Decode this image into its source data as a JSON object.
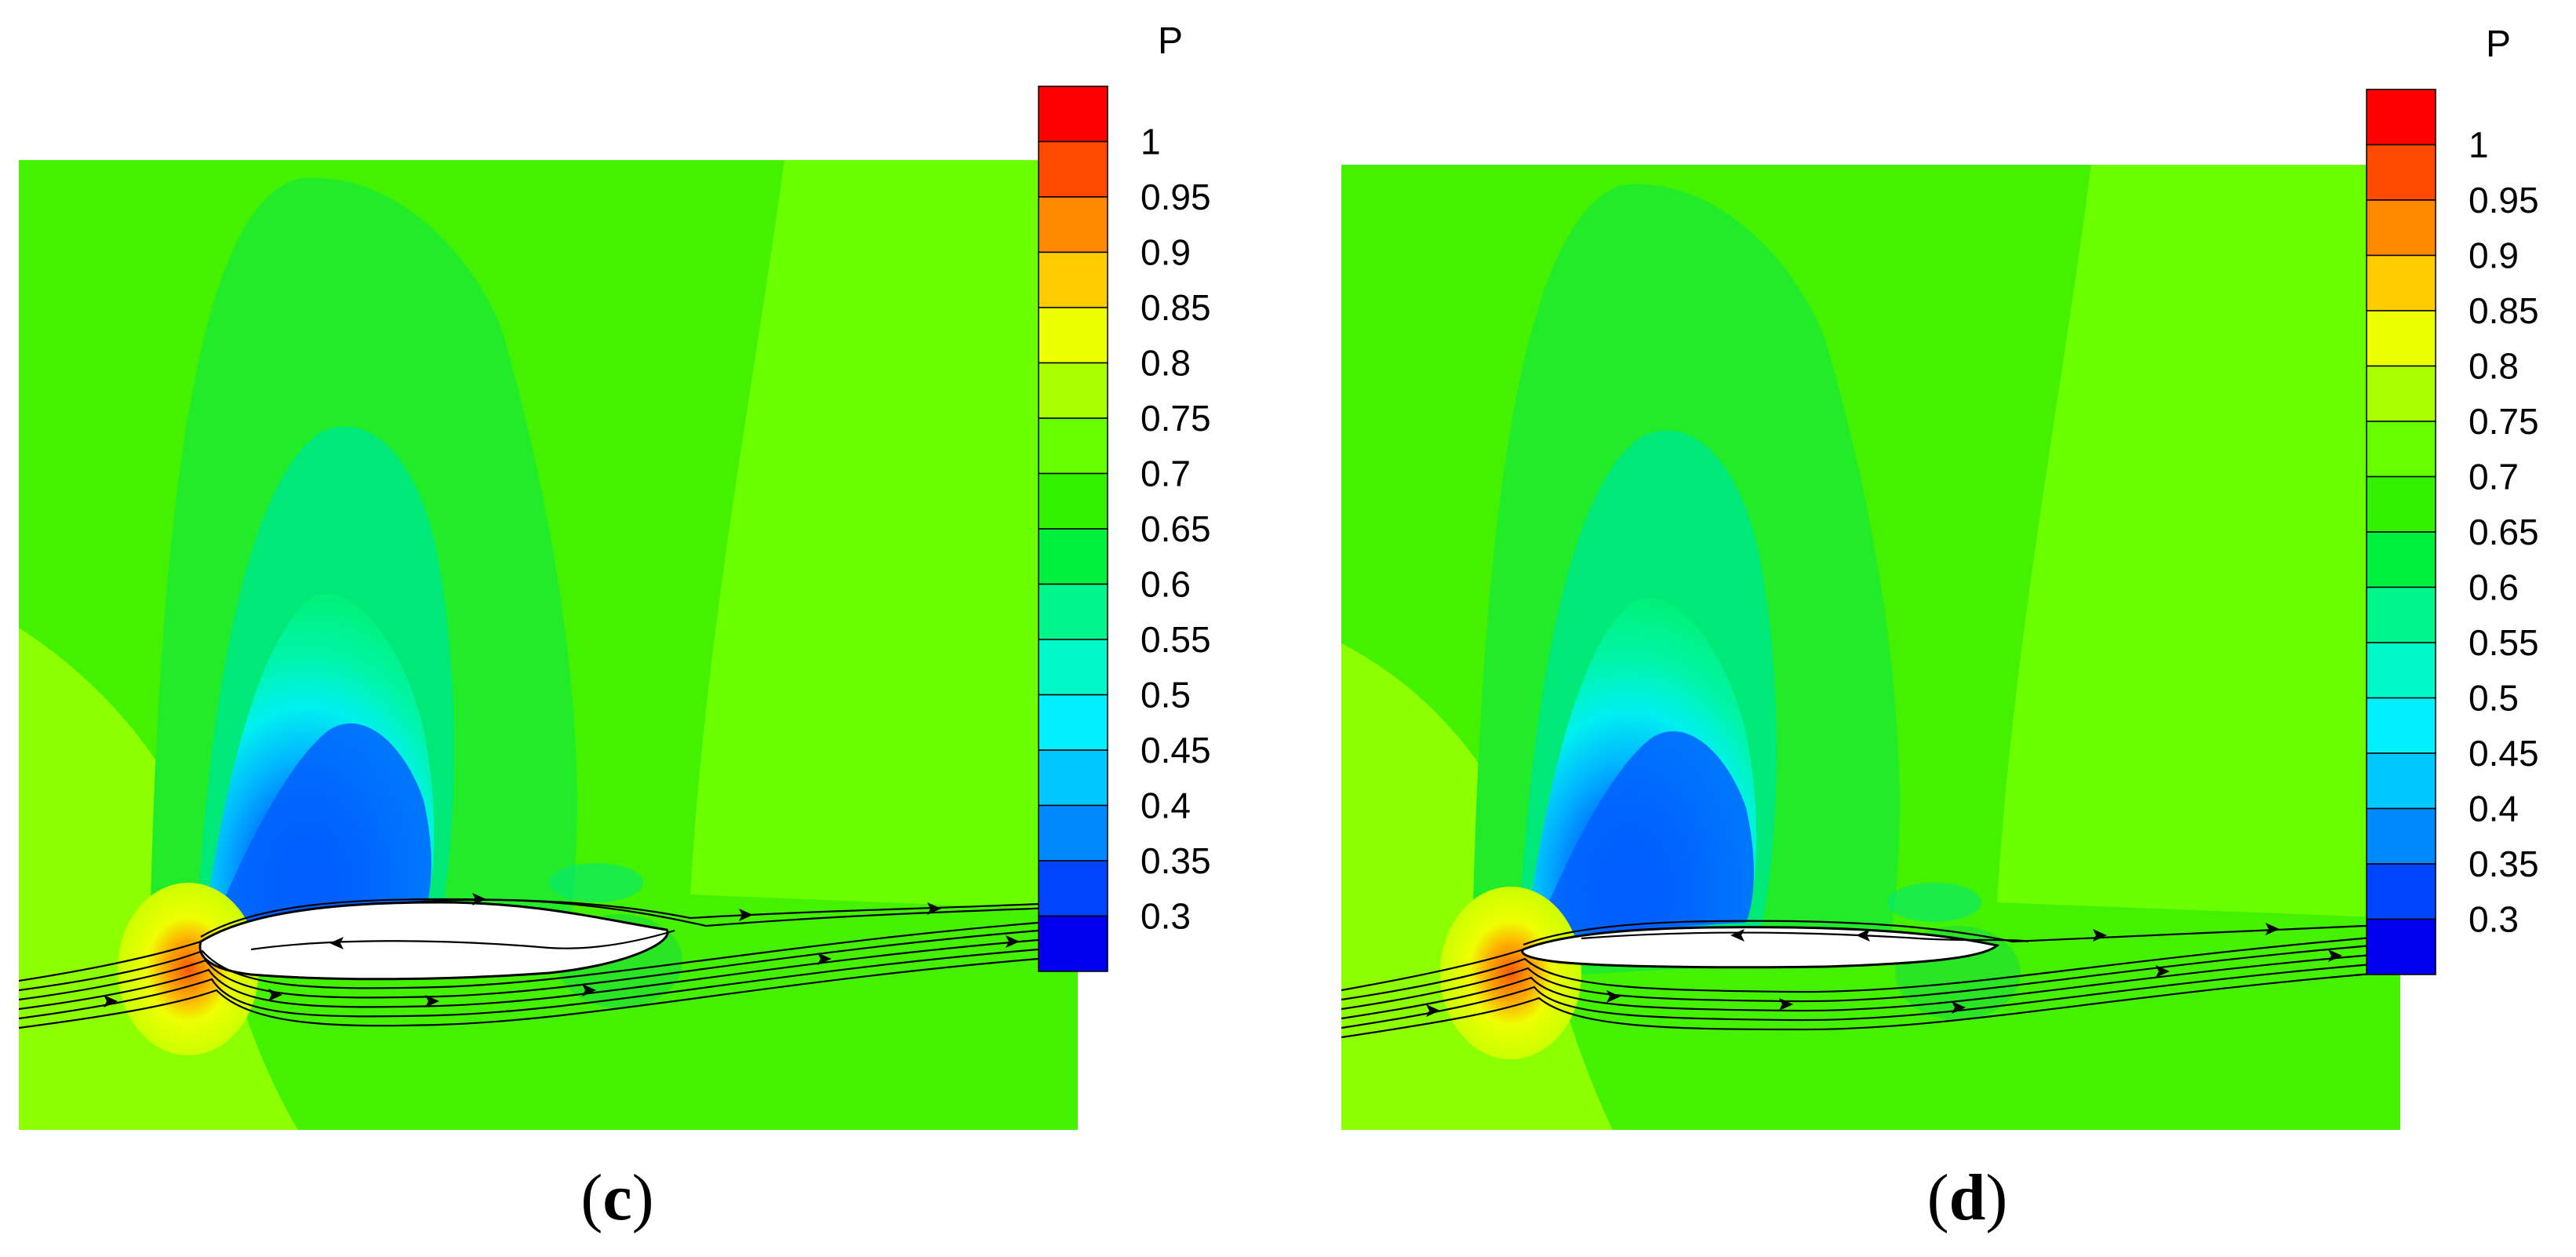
{
  "chart_data": [
    {
      "type": "heatmap",
      "panel_label_open": "(",
      "panel_label_letter": "c",
      "panel_label_close": ")",
      "colorbar": {
        "title": "P",
        "tick_labels": [
          "1",
          "0.95",
          "0.9",
          "0.85",
          "0.8",
          "0.75",
          "0.7",
          "0.65",
          "0.6",
          "0.55",
          "0.5",
          "0.45",
          "0.4",
          "0.35",
          "0.3"
        ],
        "levels": [
          1.0,
          0.95,
          0.9,
          0.85,
          0.8,
          0.75,
          0.7,
          0.65,
          0.6,
          0.55,
          0.5,
          0.45,
          0.4,
          0.35,
          0.3
        ],
        "range": [
          0.3,
          1.0
        ]
      },
      "field": {
        "background_level": 0.7,
        "low_pressure_min": 0.35,
        "stagnation_max": 0.95,
        "streamlines": "shown",
        "separation_bubble": "large"
      }
    },
    {
      "type": "heatmap",
      "panel_label_open": "(",
      "panel_label_letter": "d",
      "panel_label_close": ")",
      "colorbar": {
        "title": "P",
        "tick_labels": [
          "1",
          "0.95",
          "0.9",
          "0.85",
          "0.8",
          "0.75",
          "0.7",
          "0.65",
          "0.6",
          "0.55",
          "0.5",
          "0.45",
          "0.4",
          "0.35",
          "0.3"
        ],
        "levels": [
          1.0,
          0.95,
          0.9,
          0.85,
          0.8,
          0.75,
          0.7,
          0.65,
          0.6,
          0.55,
          0.5,
          0.45,
          0.4,
          0.35,
          0.3
        ],
        "range": [
          0.3,
          1.0
        ]
      },
      "field": {
        "background_level": 0.7,
        "low_pressure_min": 0.35,
        "stagnation_max": 0.95,
        "streamlines": "shown",
        "separation_bubble": "thin"
      }
    }
  ],
  "colors": {
    "band_colors": [
      "#ff0000",
      "#ff4a00",
      "#ff8a00",
      "#ffcc00",
      "#eeff00",
      "#aaff00",
      "#66ff00",
      "#33f200",
      "#00f040",
      "#00f58a",
      "#00f8c8",
      "#00f0ff",
      "#00c8ff",
      "#0088ff",
      "#0044ff",
      "#0000ee"
    ],
    "streamline": "#000000",
    "body_fill": "#ffffff"
  }
}
